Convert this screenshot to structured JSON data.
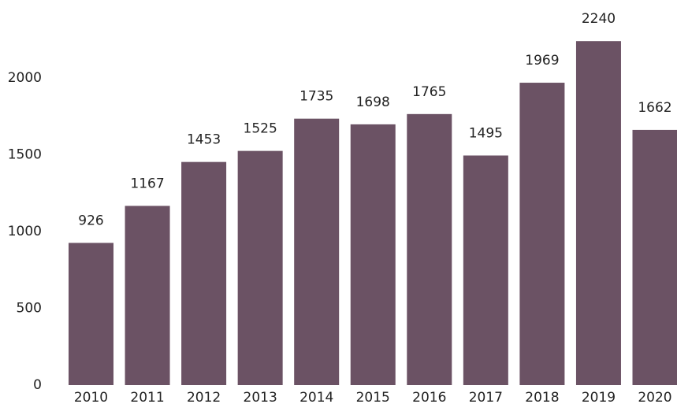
{
  "chart_data": {
    "type": "bar",
    "categories": [
      "2010",
      "2011",
      "2012",
      "2013",
      "2014",
      "2015",
      "2016",
      "2017",
      "2018",
      "2019",
      "2020"
    ],
    "values": [
      926,
      1167,
      1453,
      1525,
      1735,
      1698,
      1765,
      1495,
      1969,
      2240,
      1662
    ],
    "color": "#6b5264",
    "ylim": [
      0,
      2500
    ],
    "yticks": [
      0,
      500,
      1000,
      1500,
      2000
    ],
    "grid": false,
    "data_labels": true
  }
}
